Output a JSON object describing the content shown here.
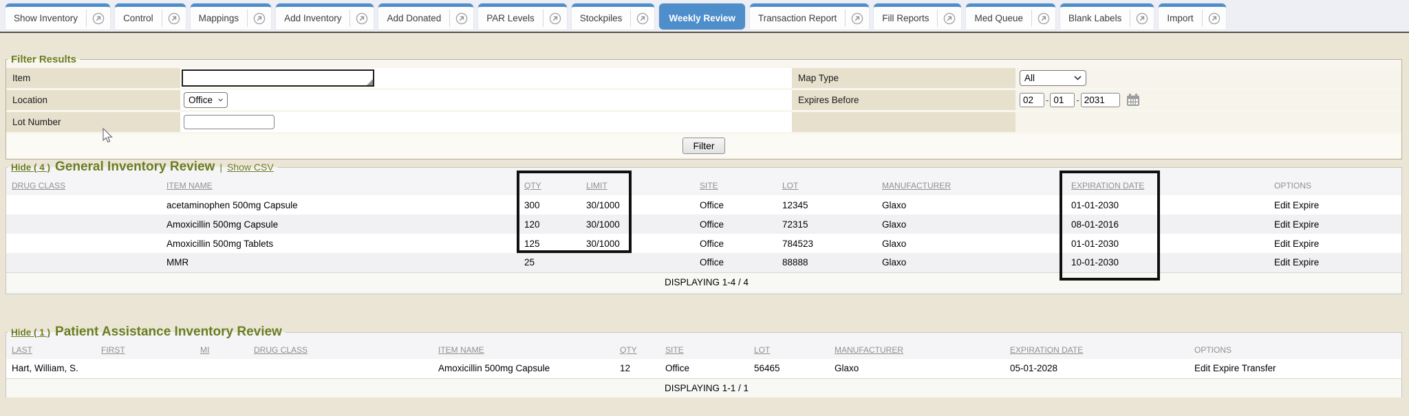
{
  "tabs": {
    "items": [
      {
        "label": "Show Inventory",
        "active": false
      },
      {
        "label": "Control",
        "active": false
      },
      {
        "label": "Mappings",
        "active": false
      },
      {
        "label": "Add Inventory",
        "active": false
      },
      {
        "label": "Add Donated",
        "active": false
      },
      {
        "label": "PAR Levels",
        "active": false
      },
      {
        "label": "Stockpiles",
        "active": false
      },
      {
        "label": "Weekly Review",
        "active": true
      },
      {
        "label": "Transaction Report",
        "active": false
      },
      {
        "label": "Fill Reports",
        "active": false
      },
      {
        "label": "Med Queue",
        "active": false
      },
      {
        "label": "Blank Labels",
        "active": false
      },
      {
        "label": "Import",
        "active": false
      }
    ]
  },
  "filter": {
    "legend": "Filter Results",
    "item_label": "Item",
    "item_value": "",
    "location_label": "Location",
    "location_value": "Office",
    "lot_label": "Lot Number",
    "lot_value": "",
    "map_type_label": "Map Type",
    "map_type_value": "All",
    "expires_label": "Expires Before",
    "expires_mm": "02",
    "expires_dd": "01",
    "expires_yyyy": "2031",
    "filter_button": "Filter"
  },
  "general_inventory": {
    "hide_label": "Hide ( 4 )",
    "title": "General Inventory Review",
    "separator": "|",
    "csv_label": "Show CSV",
    "columns": [
      "DRUG CLASS",
      "ITEM NAME",
      "QTY",
      "LIMIT",
      "SITE",
      "LOT",
      "MANUFACTURER",
      "EXPIRATION DATE",
      "OPTIONS"
    ],
    "rows": [
      [
        "",
        "acetaminophen 500mg Capsule",
        "300",
        "30/1000",
        "Office",
        "12345",
        "Glaxo",
        "01-01-2030",
        "Edit Expire"
      ],
      [
        "",
        "Amoxicillin 500mg Capsule",
        "120",
        "30/1000",
        "Office",
        "72315",
        "Glaxo",
        "08-01-2016",
        "Edit Expire"
      ],
      [
        "",
        "Amoxicillin 500mg Tablets",
        "125",
        "30/1000",
        "Office",
        "784523",
        "Glaxo",
        "01-01-2030",
        "Edit Expire"
      ],
      [
        "",
        "MMR",
        "25",
        "",
        "Office",
        "88888",
        "Glaxo",
        "10-01-2030",
        "Edit Expire"
      ]
    ],
    "displaying": "DISPLAYING 1-4 / 4"
  },
  "patient_assistance": {
    "hide_label": "Hide ( 1 )",
    "title": "Patient Assistance Inventory Review",
    "columns": [
      "LAST",
      "FIRST",
      "MI",
      "DRUG CLASS",
      "ITEM NAME",
      "QTY",
      "SITE",
      "LOT",
      "MANUFACTURER",
      "EXPIRATION DATE",
      "OPTIONS"
    ],
    "rows": [
      [
        "Hart, William, S.",
        "",
        "",
        "",
        "Amoxicillin 500mg Capsule",
        "12",
        "Office",
        "56465",
        "Glaxo",
        "05-01-2028",
        "Edit Expire Transfer"
      ]
    ],
    "displaying": "DISPLAYING 1-1 / 1"
  },
  "colors": {
    "accent_blue": "#4e8fcb",
    "heading_olive": "#6b7d22",
    "page_beige": "#ebe5d6",
    "label_cell": "#e6e0cd",
    "annotation_black": "#101010"
  }
}
